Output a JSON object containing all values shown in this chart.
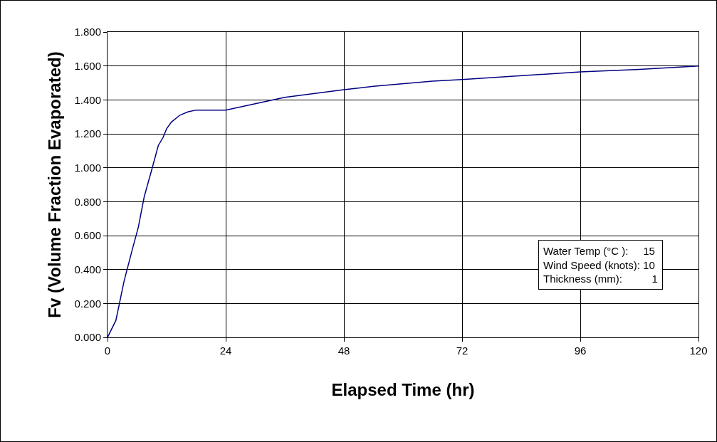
{
  "chart_data": {
    "type": "line",
    "xlabel": "Elapsed Time (hr)",
    "ylabel": "Fv (Volume Fraction Evaporated)",
    "x": [
      0,
      1.7,
      3.35,
      5.05,
      6.26,
      7.46,
      8.9,
      10.3,
      11.3,
      12,
      13,
      14.7,
      16.4,
      18,
      24,
      36,
      48,
      54,
      66,
      72,
      96,
      108,
      120
    ],
    "series": [
      {
        "color": "#000080",
        "values": [
          0,
          0.1,
          0.33,
          0.52,
          0.65,
          0.83,
          0.98,
          1.13,
          1.18,
          1.23,
          1.27,
          1.31,
          1.33,
          1.34,
          1.34,
          1.415,
          1.46,
          1.48,
          1.51,
          1.52,
          1.565,
          1.58,
          1.6
        ]
      }
    ],
    "xlim": [
      0,
      120
    ],
    "xticks": [
      0,
      24,
      48,
      72,
      96,
      120
    ],
    "ylim": [
      0,
      1.8
    ],
    "yticks": [
      {
        "value": 0,
        "label": "0.000"
      },
      {
        "value": 0.2,
        "label": "0.200"
      },
      {
        "value": 0.4,
        "label": "0.400"
      },
      {
        "value": 0.6,
        "label": "0.600"
      },
      {
        "value": 0.8,
        "label": "0.800"
      },
      {
        "value": 1,
        "label": "1.000"
      },
      {
        "value": 1.2,
        "label": "1.200"
      },
      {
        "value": 1.4,
        "label": "1.400"
      },
      {
        "value": 1.6,
        "label": "1.600"
      },
      {
        "value": 1.8,
        "label": "1.800"
      }
    ],
    "grid": true,
    "marker": "none",
    "line_style": "solid",
    "annotations": [
      "Water Temp (°C ):     15",
      "Wind Speed (knots): 10",
      "Thickness (mm):          1"
    ]
  }
}
